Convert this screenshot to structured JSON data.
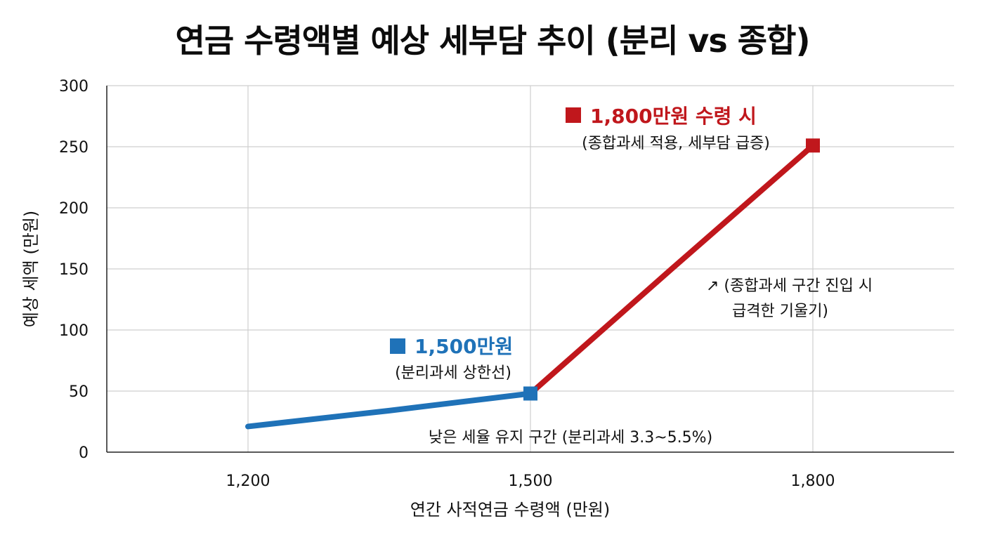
{
  "chart_data": {
    "type": "line",
    "title": "연금 수령액별 예상 세부담 추이 (분리 vs 종합)",
    "xlabel": "연간 사적연금 수령액 (만원)",
    "ylabel": "예상 세액 (만원)",
    "x_ticks": [
      "1,200",
      "1,500",
      "1,800"
    ],
    "y_ticks": [
      "0",
      "50",
      "100",
      "150",
      "200",
      "250",
      "300"
    ],
    "xlim": [
      1050,
      1950
    ],
    "ylim": [
      0,
      300
    ],
    "grid": true,
    "series": [
      {
        "color": "#1f72b8",
        "x": [
          1200,
          1350,
          1500
        ],
        "y": [
          21,
          34,
          48
        ]
      },
      {
        "color": "#c0171c",
        "x": [
          1500,
          1650,
          1800
        ],
        "y": [
          48,
          150,
          251
        ]
      }
    ],
    "markers": [
      {
        "x": 1500,
        "y": 48,
        "color": "#1f72b8"
      },
      {
        "x": 1800,
        "y": 251,
        "color": "#c0171c"
      }
    ],
    "annotations": {
      "point_1500_title": "1,500만원",
      "point_1500_sub": "(분리과세 상한선)",
      "point_1800_title": "1,800만원 수령 시",
      "point_1800_sub": "(종합과세 적용, 세부담 급증)",
      "slope_line1": "↗ (종합과세 구간 진입 시",
      "slope_line2": "급격한 기울기)",
      "low_zone": "낮은 세율 유지 구간 (분리과세 3.3~5.5%)"
    }
  }
}
